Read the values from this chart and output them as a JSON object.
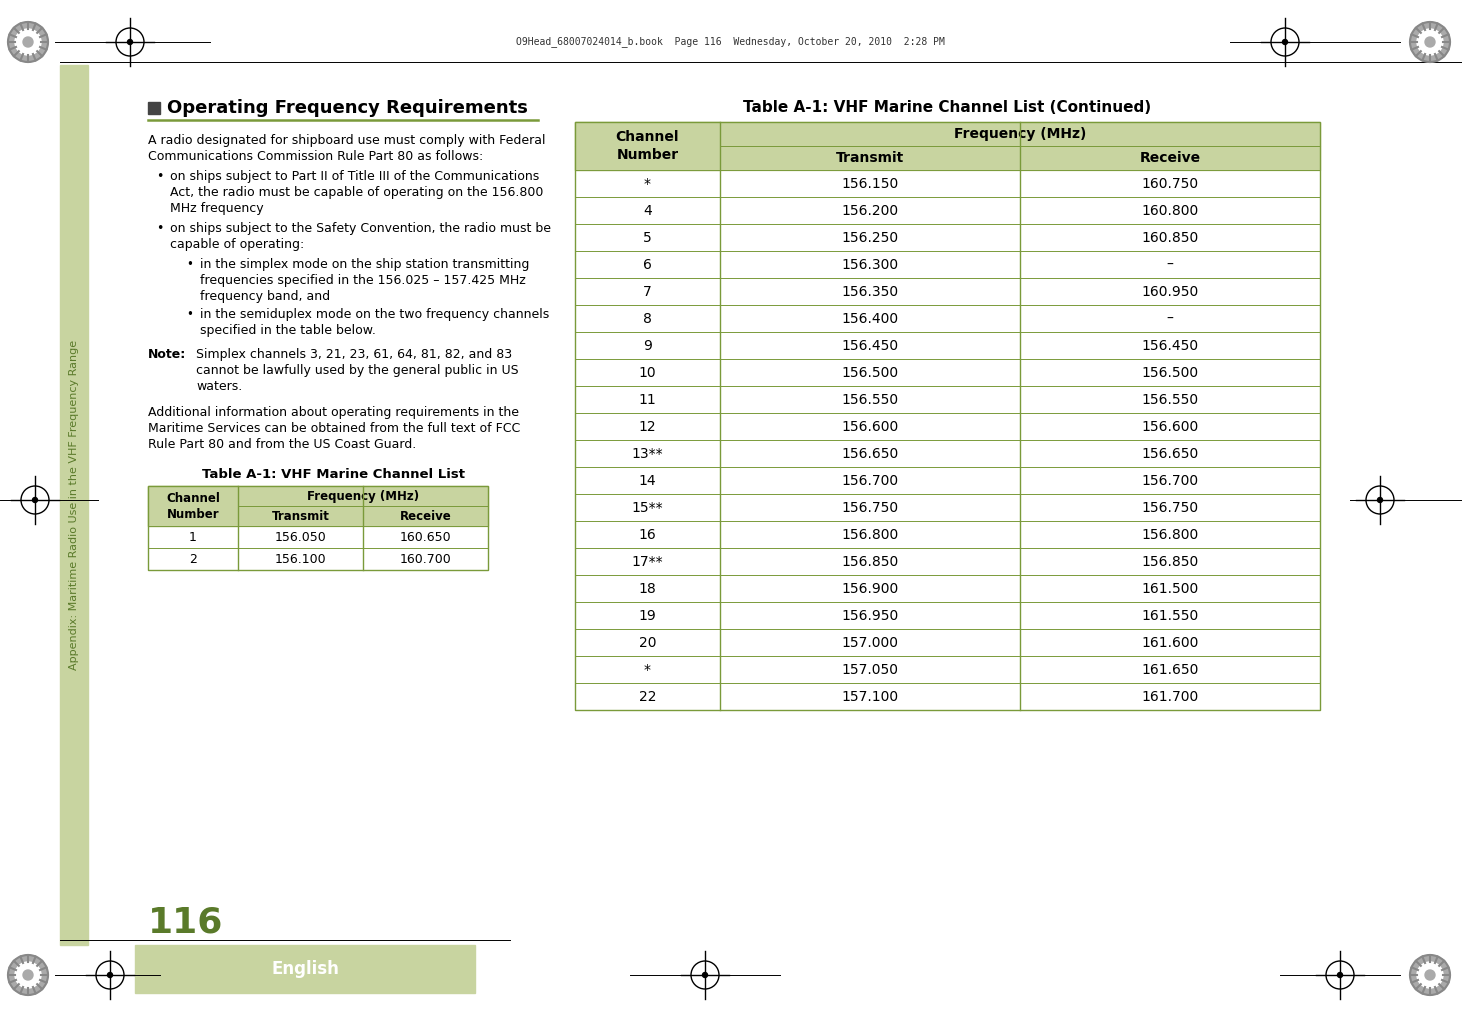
{
  "page_bg": "#ffffff",
  "sidebar_color": "#c8d4a0",
  "sidebar_text": "Appendix: Maritime Radio Use in the VHF Frequency Range",
  "sidebar_text_color": "#5a7a2a",
  "page_number": "116",
  "page_number_color": "#5a7a2a",
  "english_label": "English",
  "english_bg": "#c8d4a0",
  "english_text_color": "#ffffff",
  "header_line": "O9Head_68007024014_b.book  Page 116  Wednesday, October 20, 2010  2:28 PM",
  "section_title": "Operating Frequency Requirements",
  "section_title_square_color": "#444444",
  "table1_title": "Table A-1: VHF Marine Channel List",
  "table2_title": "Table A-1: VHF Marine Channel List (Continued)",
  "table_header_bg": "#c8d4a0",
  "table_border_color": "#7a9a3a",
  "table1_data": [
    [
      "1",
      "156.050",
      "160.650"
    ],
    [
      "2",
      "156.100",
      "160.700"
    ]
  ],
  "table2_data": [
    [
      "*",
      "156.150",
      "160.750"
    ],
    [
      "4",
      "156.200",
      "160.800"
    ],
    [
      "5",
      "156.250",
      "160.850"
    ],
    [
      "6",
      "156.300",
      "–"
    ],
    [
      "7",
      "156.350",
      "160.950"
    ],
    [
      "8",
      "156.400",
      "–"
    ],
    [
      "9",
      "156.450",
      "156.450"
    ],
    [
      "10",
      "156.500",
      "156.500"
    ],
    [
      "11",
      "156.550",
      "156.550"
    ],
    [
      "12",
      "156.600",
      "156.600"
    ],
    [
      "13**",
      "156.650",
      "156.650"
    ],
    [
      "14",
      "156.700",
      "156.700"
    ],
    [
      "15**",
      "156.750",
      "156.750"
    ],
    [
      "16",
      "156.800",
      "156.800"
    ],
    [
      "17**",
      "156.850",
      "156.850"
    ],
    [
      "18",
      "156.900",
      "161.500"
    ],
    [
      "19",
      "156.950",
      "161.550"
    ],
    [
      "20",
      "157.000",
      "161.600"
    ],
    [
      "*",
      "157.050",
      "161.650"
    ],
    [
      "22",
      "157.100",
      "161.700"
    ]
  ],
  "crosshair_color": "#000000",
  "line_color": "#000000",
  "divider_line_color": "#7a9a3a"
}
